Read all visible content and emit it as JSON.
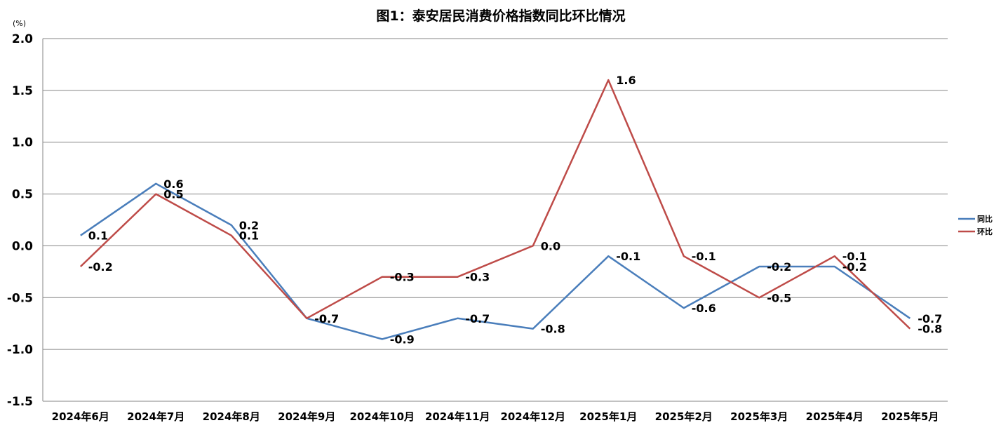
{
  "chart_data": {
    "type": "line",
    "title": "图1：泰安居民消费价格指数同比环比情况",
    "yunit": "(%)",
    "categories": [
      "2024年6月",
      "2024年7月",
      "2024年8月",
      "2024年9月",
      "2024年10月",
      "2024年11月",
      "2024年12月",
      "2025年1月",
      "2025年2月",
      "2025年3月",
      "2025年4月",
      "2025年5月"
    ],
    "series": [
      {
        "name": "同比",
        "color": "#4a7ebb",
        "values": [
          0.1,
          0.6,
          0.2,
          -0.7,
          -0.9,
          -0.7,
          -0.8,
          -0.1,
          -0.6,
          -0.2,
          -0.2,
          -0.7
        ]
      },
      {
        "name": "环比",
        "color": "#be4b48",
        "values": [
          -0.2,
          0.5,
          0.1,
          -0.7,
          -0.3,
          -0.3,
          0.0,
          1.6,
          -0.1,
          -0.5,
          -0.1,
          -0.8
        ]
      }
    ],
    "yticks": [
      2.0,
      1.5,
      1.0,
      0.5,
      0.0,
      -0.5,
      -1.0,
      -1.5
    ],
    "ylim": [
      -1.5,
      2.0
    ],
    "grid": true,
    "legend": "right"
  }
}
